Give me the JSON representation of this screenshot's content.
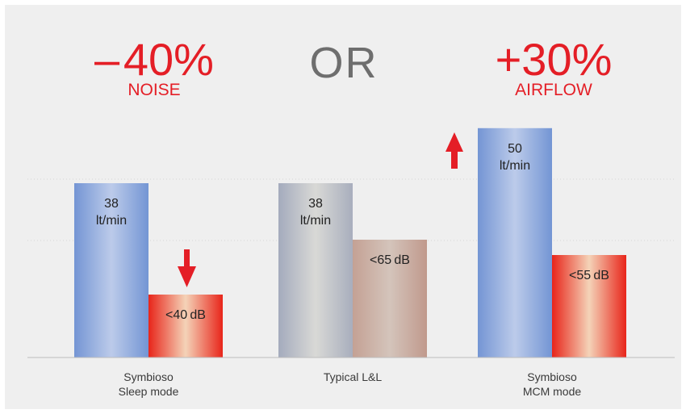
{
  "headlines": {
    "left_value": "– 40%",
    "left_caption": "NOISE",
    "center": "OR",
    "right_value": "+30%",
    "right_caption": "AIRFLOW"
  },
  "colors": {
    "accent_red": "#e41e26",
    "background": "#efefef",
    "airflow_bar_blue": "#7f9ed6",
    "noise_bar_red": "#e8251a",
    "typical_airflow_grey": "#b7bcc8",
    "typical_noise_brown": "#c9a89e"
  },
  "icons": [
    "arrow-down-icon",
    "arrow-up-icon"
  ],
  "chart_data": {
    "type": "bar",
    "categories": [
      "Symbioso\nSleep mode",
      "Typical L&L",
      "Symbioso\nMCM mode"
    ],
    "series": [
      {
        "values": [
          38,
          38,
          50
        ],
        "labels": [
          "38\nlt/min",
          "38\nlt/min",
          "50\nlt/min"
        ]
      },
      {
        "values": [
          40,
          65,
          55
        ],
        "labels": [
          "<40 dB",
          "<65 dB",
          "<55 dB"
        ]
      }
    ],
    "xlabel": "",
    "ylabel": "",
    "grid": "dotted horizontal",
    "legend": "none"
  }
}
